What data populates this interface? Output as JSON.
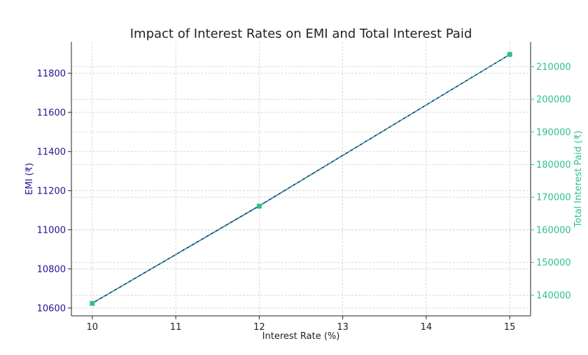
{
  "chart_data": {
    "type": "line",
    "title": "Impact of Interest Rates on EMI and Total Interest Paid",
    "xlabel": "Interest Rate (%)",
    "ylabel_left": "EMI (₹)",
    "ylabel_right": "Total Interest Paid (₹)",
    "x": [
      10,
      12,
      15
    ],
    "x_ticks": [
      10,
      11,
      12,
      13,
      14,
      15
    ],
    "xlim": [
      9.75,
      15.25
    ],
    "series": [
      {
        "axis": "left",
        "values": [
          10624.5,
          11122.1,
          11895.7
        ],
        "color": "#2a0f8f",
        "line_style": "solid",
        "marker": "circle"
      },
      {
        "axis": "right",
        "values": [
          137470,
          167253,
          213742
        ],
        "color": "#2fbf8f",
        "line_style": "dashed",
        "marker": "square"
      }
    ],
    "ylim_left": [
      10560,
      11960
    ],
    "ylim_right": [
      133650,
      217570
    ],
    "y_ticks_left": [
      10600,
      10800,
      11000,
      11200,
      11400,
      11600,
      11800
    ],
    "y_ticks_right": [
      140000,
      150000,
      160000,
      170000,
      180000,
      190000,
      200000,
      210000
    ],
    "grid": true,
    "left_axis_color": "#2a0f8f",
    "right_axis_color": "#2fbf8f"
  }
}
